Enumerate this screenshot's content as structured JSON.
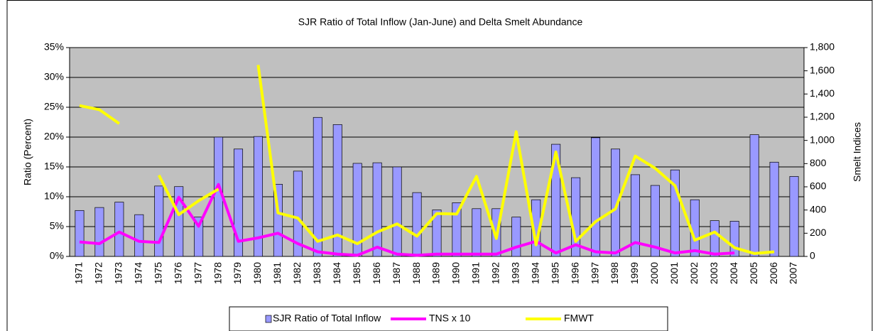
{
  "chart_data": {
    "type": "bar-line",
    "title": "SJR Ratio of Total Inflow (Jan-June) and Delta Smelt Abundance",
    "ylabel": "Ratio (Percent)",
    "y2label": "Smelt Indices",
    "categories": [
      "1971",
      "1972",
      "1973",
      "1974",
      "1975",
      "1976",
      "1977",
      "1978",
      "1979",
      "1980",
      "1981",
      "1982",
      "1983",
      "1984",
      "1985",
      "1986",
      "1987",
      "1988",
      "1989",
      "1990",
      "1991",
      "1992",
      "1993",
      "1994",
      "1995",
      "1996",
      "1997",
      "1998",
      "1999",
      "2000",
      "2001",
      "2002",
      "2003",
      "2004",
      "2005",
      "2006",
      "2007"
    ],
    "series": [
      {
        "name": "SJR Ratio of Total Inflow",
        "type": "bar",
        "color": "#9999ff",
        "axis": "y",
        "values": [
          7.7,
          8.2,
          9.1,
          7.0,
          11.8,
          11.7,
          6.6,
          20.0,
          18.0,
          20.1,
          12.1,
          14.3,
          23.3,
          22.1,
          15.6,
          15.7,
          15.0,
          10.7,
          7.8,
          9.0,
          8.0,
          8.0,
          6.6,
          9.5,
          18.8,
          13.2,
          19.9,
          18.0,
          13.7,
          11.9,
          14.5,
          9.5,
          6.0,
          5.9,
          20.4,
          15.8,
          13.4
        ]
      },
      {
        "name": "TNS x 10",
        "type": "line",
        "color": "#ff00ff",
        "axis": "y2",
        "values": [
          125,
          110,
          210,
          130,
          120,
          510,
          260,
          620,
          130,
          160,
          200,
          110,
          40,
          20,
          10,
          80,
          20,
          10,
          20,
          20,
          20,
          20,
          80,
          130,
          30,
          100,
          40,
          30,
          120,
          80,
          30,
          50,
          20,
          30,
          null,
          null,
          null
        ]
      },
      {
        "name": "FMWT",
        "type": "line",
        "color": "#ffff00",
        "axis": "y2",
        "values": [
          1300,
          1265,
          1145,
          null,
          700,
          360,
          480,
          580,
          null,
          1650,
          375,
          330,
          130,
          185,
          110,
          210,
          280,
          175,
          370,
          365,
          690,
          155,
          1075,
          100,
          900,
          130,
          300,
          410,
          865,
          760,
          610,
          140,
          210,
          75,
          25,
          40,
          null
        ]
      }
    ],
    "ylim": [
      0,
      35
    ],
    "yticks": [
      {
        "value": 0,
        "label": "0%"
      },
      {
        "value": 5,
        "label": "5%"
      },
      {
        "value": 10,
        "label": "10%"
      },
      {
        "value": 15,
        "label": "15%"
      },
      {
        "value": 20,
        "label": "20%"
      },
      {
        "value": 25,
        "label": "25%"
      },
      {
        "value": 30,
        "label": "30%"
      },
      {
        "value": 35,
        "label": "35%"
      }
    ],
    "y2lim": [
      0,
      1800
    ],
    "y2ticks": [
      0,
      200,
      400,
      600,
      800,
      {
        "value": 1000,
        "label": "1,000"
      },
      {
        "value": 1200,
        "label": "1,200"
      },
      {
        "value": 1400,
        "label": "1,400"
      },
      {
        "value": 1600,
        "label": "1,600"
      },
      {
        "value": 1800,
        "label": "1,800"
      }
    ],
    "grid": true,
    "legend": "bottom"
  }
}
